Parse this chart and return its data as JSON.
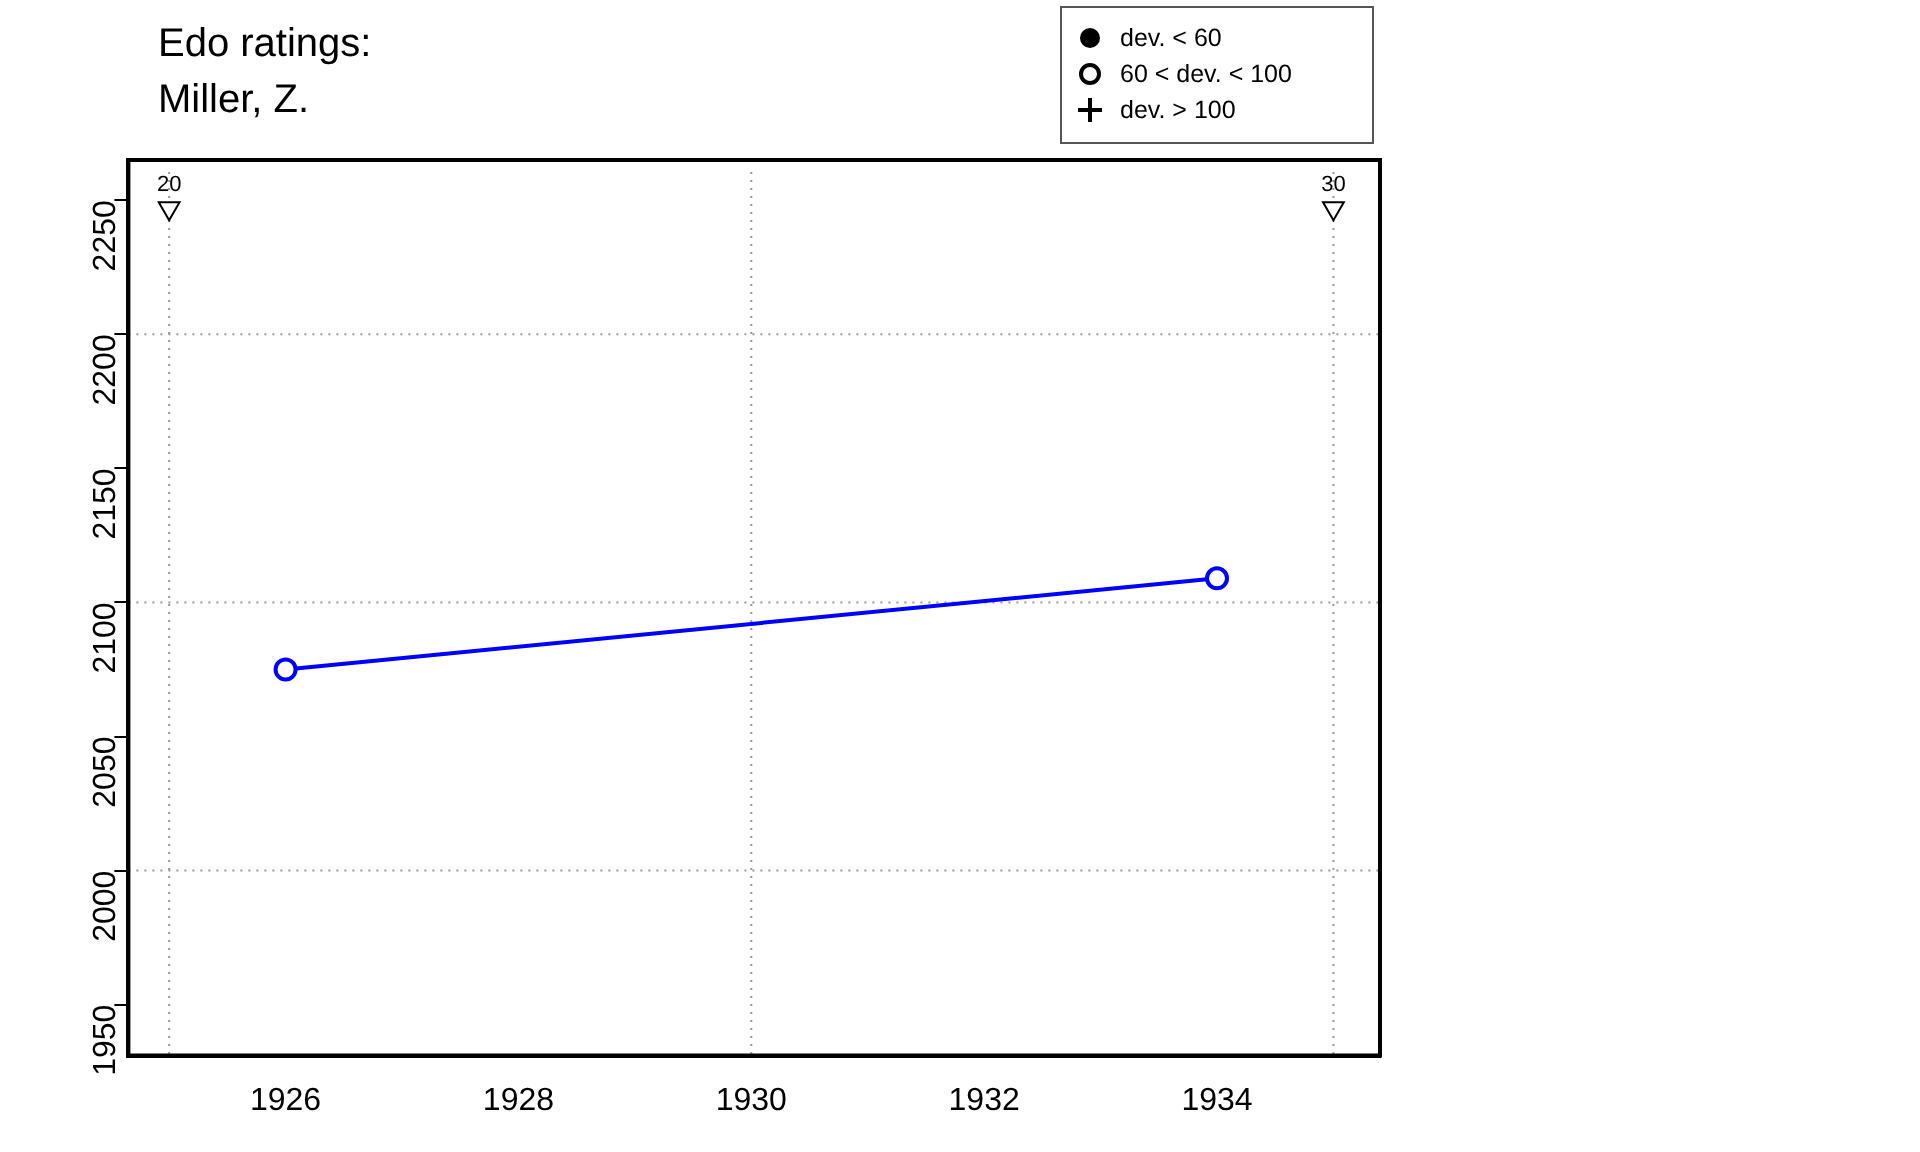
{
  "chart_data": {
    "type": "line",
    "title": "Edo ratings:",
    "subtitle": "Miller, Z.",
    "x": [
      1926,
      1934
    ],
    "series": [
      {
        "color": "#0000ff",
        "values": [
          2075,
          2109
        ]
      },
      {
        "type": "scatter",
        "x": [
          1925,
          1935
        ],
        "color": "#000000",
        "marker": "triangle",
        "values": [
          2247,
          2247
        ]
      }
    ],
    "marker": "circle",
    "line_style": "solid",
    "xlim": [
      1924.65,
      1935.4
    ],
    "xticks": [
      1926,
      1928,
      1930,
      1932,
      1934
    ],
    "ylim": [
      1931,
      2265
    ],
    "yticks": [
      1950,
      2000,
      2050,
      2100,
      2150,
      2200,
      2250
    ],
    "grid": false,
    "legend": false,
    "ref_lines": [
      {
        "axis": "x",
        "value": 1925,
        "label": null,
        "line_style": "dotted",
        "color": "#999999"
      },
      {
        "axis": "x",
        "value": 1930,
        "label": null,
        "line_style": "dotted",
        "color": "#999999"
      },
      {
        "axis": "x",
        "value": 1935,
        "label": null,
        "line_style": "dotted",
        "color": "#999999"
      },
      {
        "axis": "y",
        "value": 2000,
        "label": null,
        "line_style": "dotted",
        "color": "#999999"
      },
      {
        "axis": "y",
        "value": 2100,
        "label": null,
        "line_style": "dotted",
        "color": "#999999"
      },
      {
        "axis": "y",
        "value": 2200,
        "label": null,
        "line_style": "dotted",
        "color": "#999999"
      }
    ],
    "annotations": [
      "dev. < 60",
      "60 < dev. < 100",
      "dev. > 100",
      {
        "text": "20",
        "x": 1925,
        "y": 2247
      },
      {
        "text": "30",
        "x": 1935,
        "y": 2247
      }
    ]
  }
}
